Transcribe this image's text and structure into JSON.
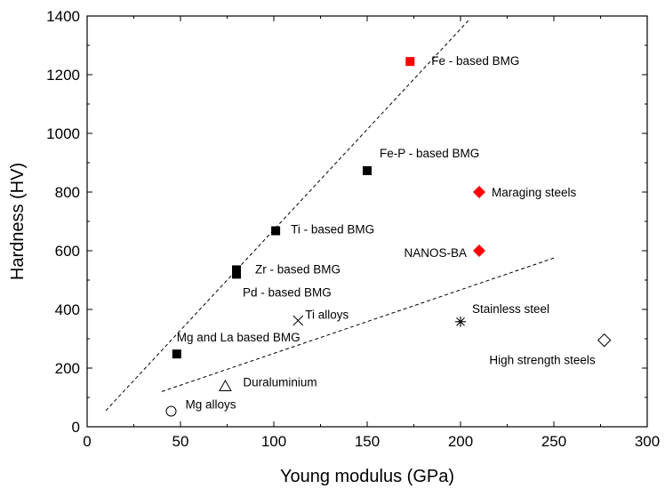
{
  "chart_data": {
    "type": "scatter",
    "title": "",
    "xlabel": "Young modulus (GPa)",
    "ylabel": "Hardness (HV)",
    "xlim": [
      0,
      300
    ],
    "ylim": [
      0,
      1400
    ],
    "xticks": [
      0,
      50,
      100,
      150,
      200,
      250,
      300
    ],
    "yticks": [
      0,
      200,
      400,
      600,
      800,
      1000,
      1200,
      1400
    ],
    "grid": false,
    "legend": "none",
    "points": [
      {
        "label": "Fe - based BMG",
        "x": 173,
        "y": 1245,
        "marker": "square-filled",
        "color": "#ff0000"
      },
      {
        "label": "Fe-P - based BMG",
        "x": 150,
        "y": 873,
        "marker": "square-filled",
        "color": "#000000"
      },
      {
        "label": "Maraging steels",
        "x": 210,
        "y": 800,
        "marker": "diamond-filled",
        "color": "#ff0000"
      },
      {
        "label": "Ti - based BMG",
        "x": 101,
        "y": 668,
        "marker": "square-filled",
        "color": "#000000"
      },
      {
        "label": "NANOS-BA",
        "x": 210,
        "y": 600,
        "marker": "diamond-filled",
        "color": "#ff0000"
      },
      {
        "label": "Zr - based BMG",
        "x": 80,
        "y": 535,
        "marker": "square-filled",
        "color": "#000000"
      },
      {
        "label": "Pd - based BMG",
        "x": 80,
        "y": 520,
        "marker": "square-filled",
        "color": "#000000"
      },
      {
        "label": "Ti alloys",
        "x": 113,
        "y": 362,
        "marker": "cross",
        "color": "#000000"
      },
      {
        "label": "Stainless steel",
        "x": 200,
        "y": 358,
        "marker": "asterisk",
        "color": "#000000"
      },
      {
        "label": "High strength steels",
        "x": 277,
        "y": 295,
        "marker": "diamond-open",
        "color": "#000000"
      },
      {
        "label": "Mg and La based BMG",
        "x": 48,
        "y": 248,
        "marker": "square-filled",
        "color": "#000000"
      },
      {
        "label": "Duraluminium",
        "x": 74,
        "y": 138,
        "marker": "triangle-open",
        "color": "#000000"
      },
      {
        "label": "Mg alloys",
        "x": 45,
        "y": 53,
        "marker": "circle-open",
        "color": "#000000"
      }
    ],
    "trend_lines": [
      {
        "name": "upper",
        "x": [
          10,
          205
        ],
        "y": [
          55,
          1390
        ],
        "style": "dashed"
      },
      {
        "name": "lower",
        "x": [
          40,
          250
        ],
        "y": [
          120,
          575
        ],
        "style": "dashed"
      }
    ]
  }
}
